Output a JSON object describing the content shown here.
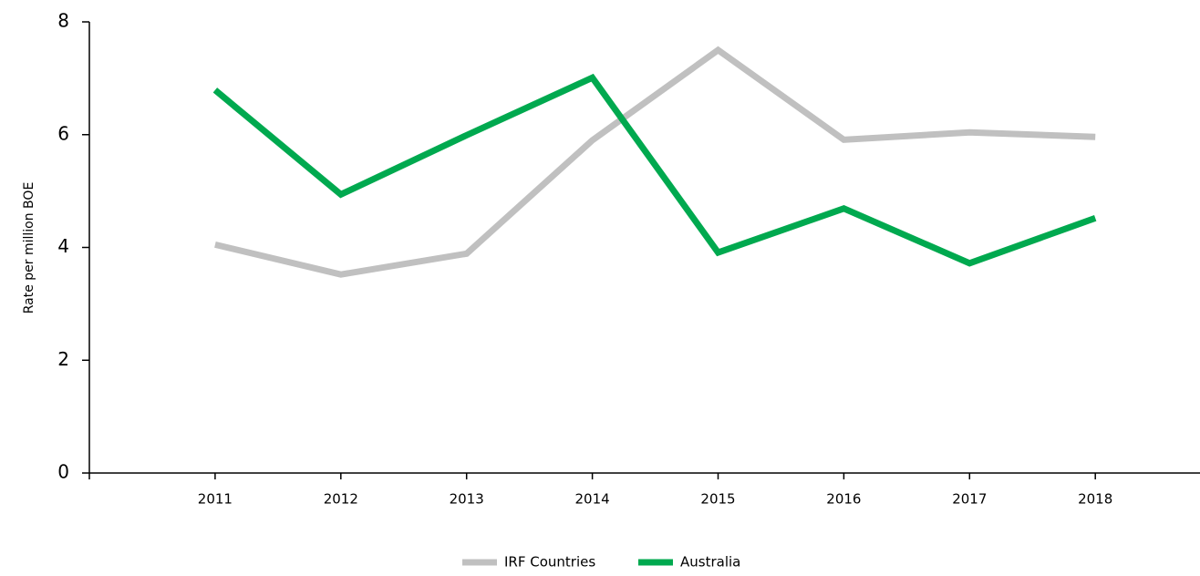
{
  "chart_data": {
    "type": "line",
    "y_label": "Rate per million BOE",
    "categories": [
      "2011",
      "2012",
      "2013",
      "2014",
      "2015",
      "2016",
      "2017",
      "2018"
    ],
    "series": [
      {
        "name": "IRF Countries",
        "color": "#c0c0c0",
        "values": [
          4.05,
          3.52,
          3.89,
          5.9,
          7.5,
          5.91,
          6.04,
          5.96
        ]
      },
      {
        "name": "Australia",
        "color": "#00a94f",
        "values": [
          6.79,
          4.94,
          5.99,
          7.01,
          3.91,
          4.69,
          3.72,
          4.52
        ]
      }
    ],
    "ylim": [
      0,
      8
    ],
    "yticks": [
      0,
      2,
      4,
      6,
      8
    ],
    "grid": false,
    "legend": "bottom"
  }
}
